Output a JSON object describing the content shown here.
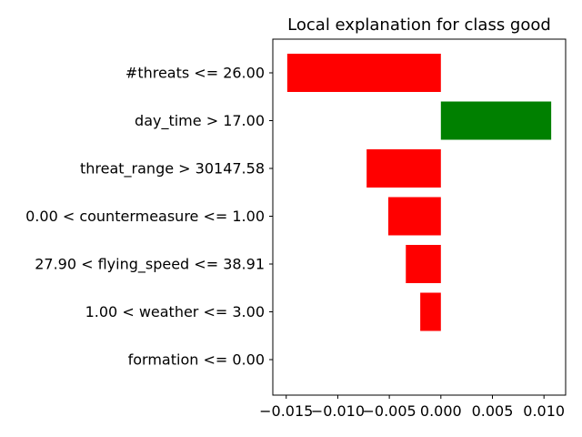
{
  "chart_data": {
    "type": "bar",
    "orientation": "horizontal",
    "title": "Local explanation for class good",
    "xlabel": "",
    "ylabel": "",
    "xlim": [
      -0.0163,
      0.0121
    ],
    "grid": false,
    "categories": [
      "#threats <= 26.00",
      "day_time > 17.00",
      "threat_range > 30147.58",
      "0.00 < countermeasure <= 1.00",
      "27.90 < flying_speed <= 38.91",
      "1.00 < weather <= 3.00",
      "formation <= 0.00"
    ],
    "values": [
      -0.0149,
      0.0107,
      -0.0072,
      -0.0051,
      -0.0034,
      -0.002,
      0.0
    ],
    "x_ticks": [
      -0.015,
      -0.01,
      -0.005,
      0.0,
      0.005,
      0.01
    ],
    "x_tick_labels": [
      "−0.015",
      "−0.010",
      "−0.005",
      "0.000",
      "0.005",
      "0.010"
    ],
    "colors": {
      "positive": "#008000",
      "negative": "#ff0000",
      "axis": "#000000"
    }
  }
}
